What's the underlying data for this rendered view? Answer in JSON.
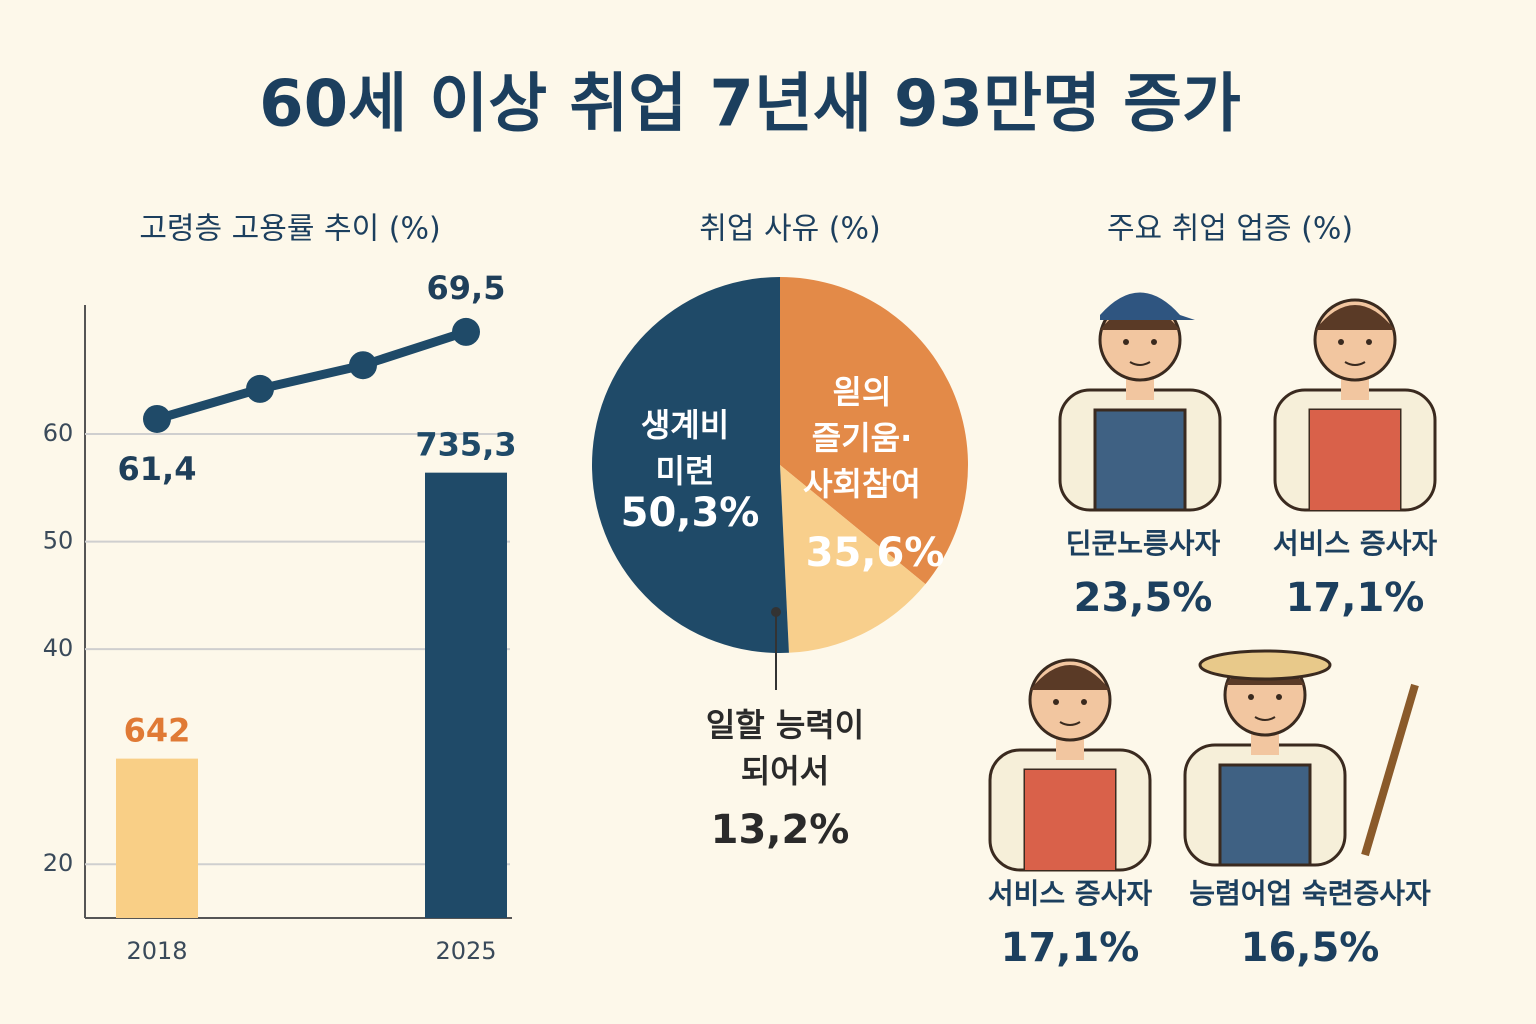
{
  "title": "60세 이상 취업 7년새 93만명 증가",
  "chart_data": [
    {
      "type": "line-bar",
      "title": "고령층 고용률 추이 (%)",
      "categories": [
        "2018",
        null,
        null,
        "2025"
      ],
      "ylim": [
        15,
        72
      ],
      "yticks": [
        20,
        40,
        50,
        60
      ],
      "grid": true,
      "y2lim": [
        590,
        790
      ],
      "series": [
        {
          "type": "line",
          "color": "#1f4a68",
          "values": [
            61.4,
            64.2,
            66.4,
            69.5
          ],
          "value_labels": [
            "61,4",
            null,
            null,
            "69,5"
          ]
        },
        {
          "type": "bar",
          "axis": "y2",
          "colors": [
            "#f9cf86",
            null,
            null,
            "#1f4a68"
          ],
          "label_colors": [
            "#e07a35",
            null,
            null,
            "#1f4a68"
          ],
          "values": [
            642,
            null,
            null,
            735.3
          ],
          "value_labels": [
            "642",
            null,
            null,
            "735,3"
          ]
        }
      ]
    },
    {
      "type": "pie",
      "title": "취업 사유 (%)",
      "categories": [
        "읟의\n즐기움·\n사회참여",
        "일할 능력이\n되어서",
        "생계비\n미련"
      ],
      "values": [
        35.6,
        13.2,
        50.3
      ],
      "value_labels": [
        "35,6%",
        "13,2%",
        "50,3%"
      ],
      "colors": [
        "#e38a48",
        "#f8cf8c",
        "#1f4a68"
      ]
    }
  ],
  "occupations": {
    "title": "주요 취업 업증 (%)",
    "items": [
      {
        "label": "딘쿤노릉사자",
        "value": "23,5%"
      },
      {
        "label": "서비스 증사자",
        "value": "17,1%"
      },
      {
        "label": "서비스 증사자",
        "value": "17,1%"
      },
      {
        "label": "능렴어업 숙련증사자",
        "value": "16,5%"
      }
    ]
  }
}
